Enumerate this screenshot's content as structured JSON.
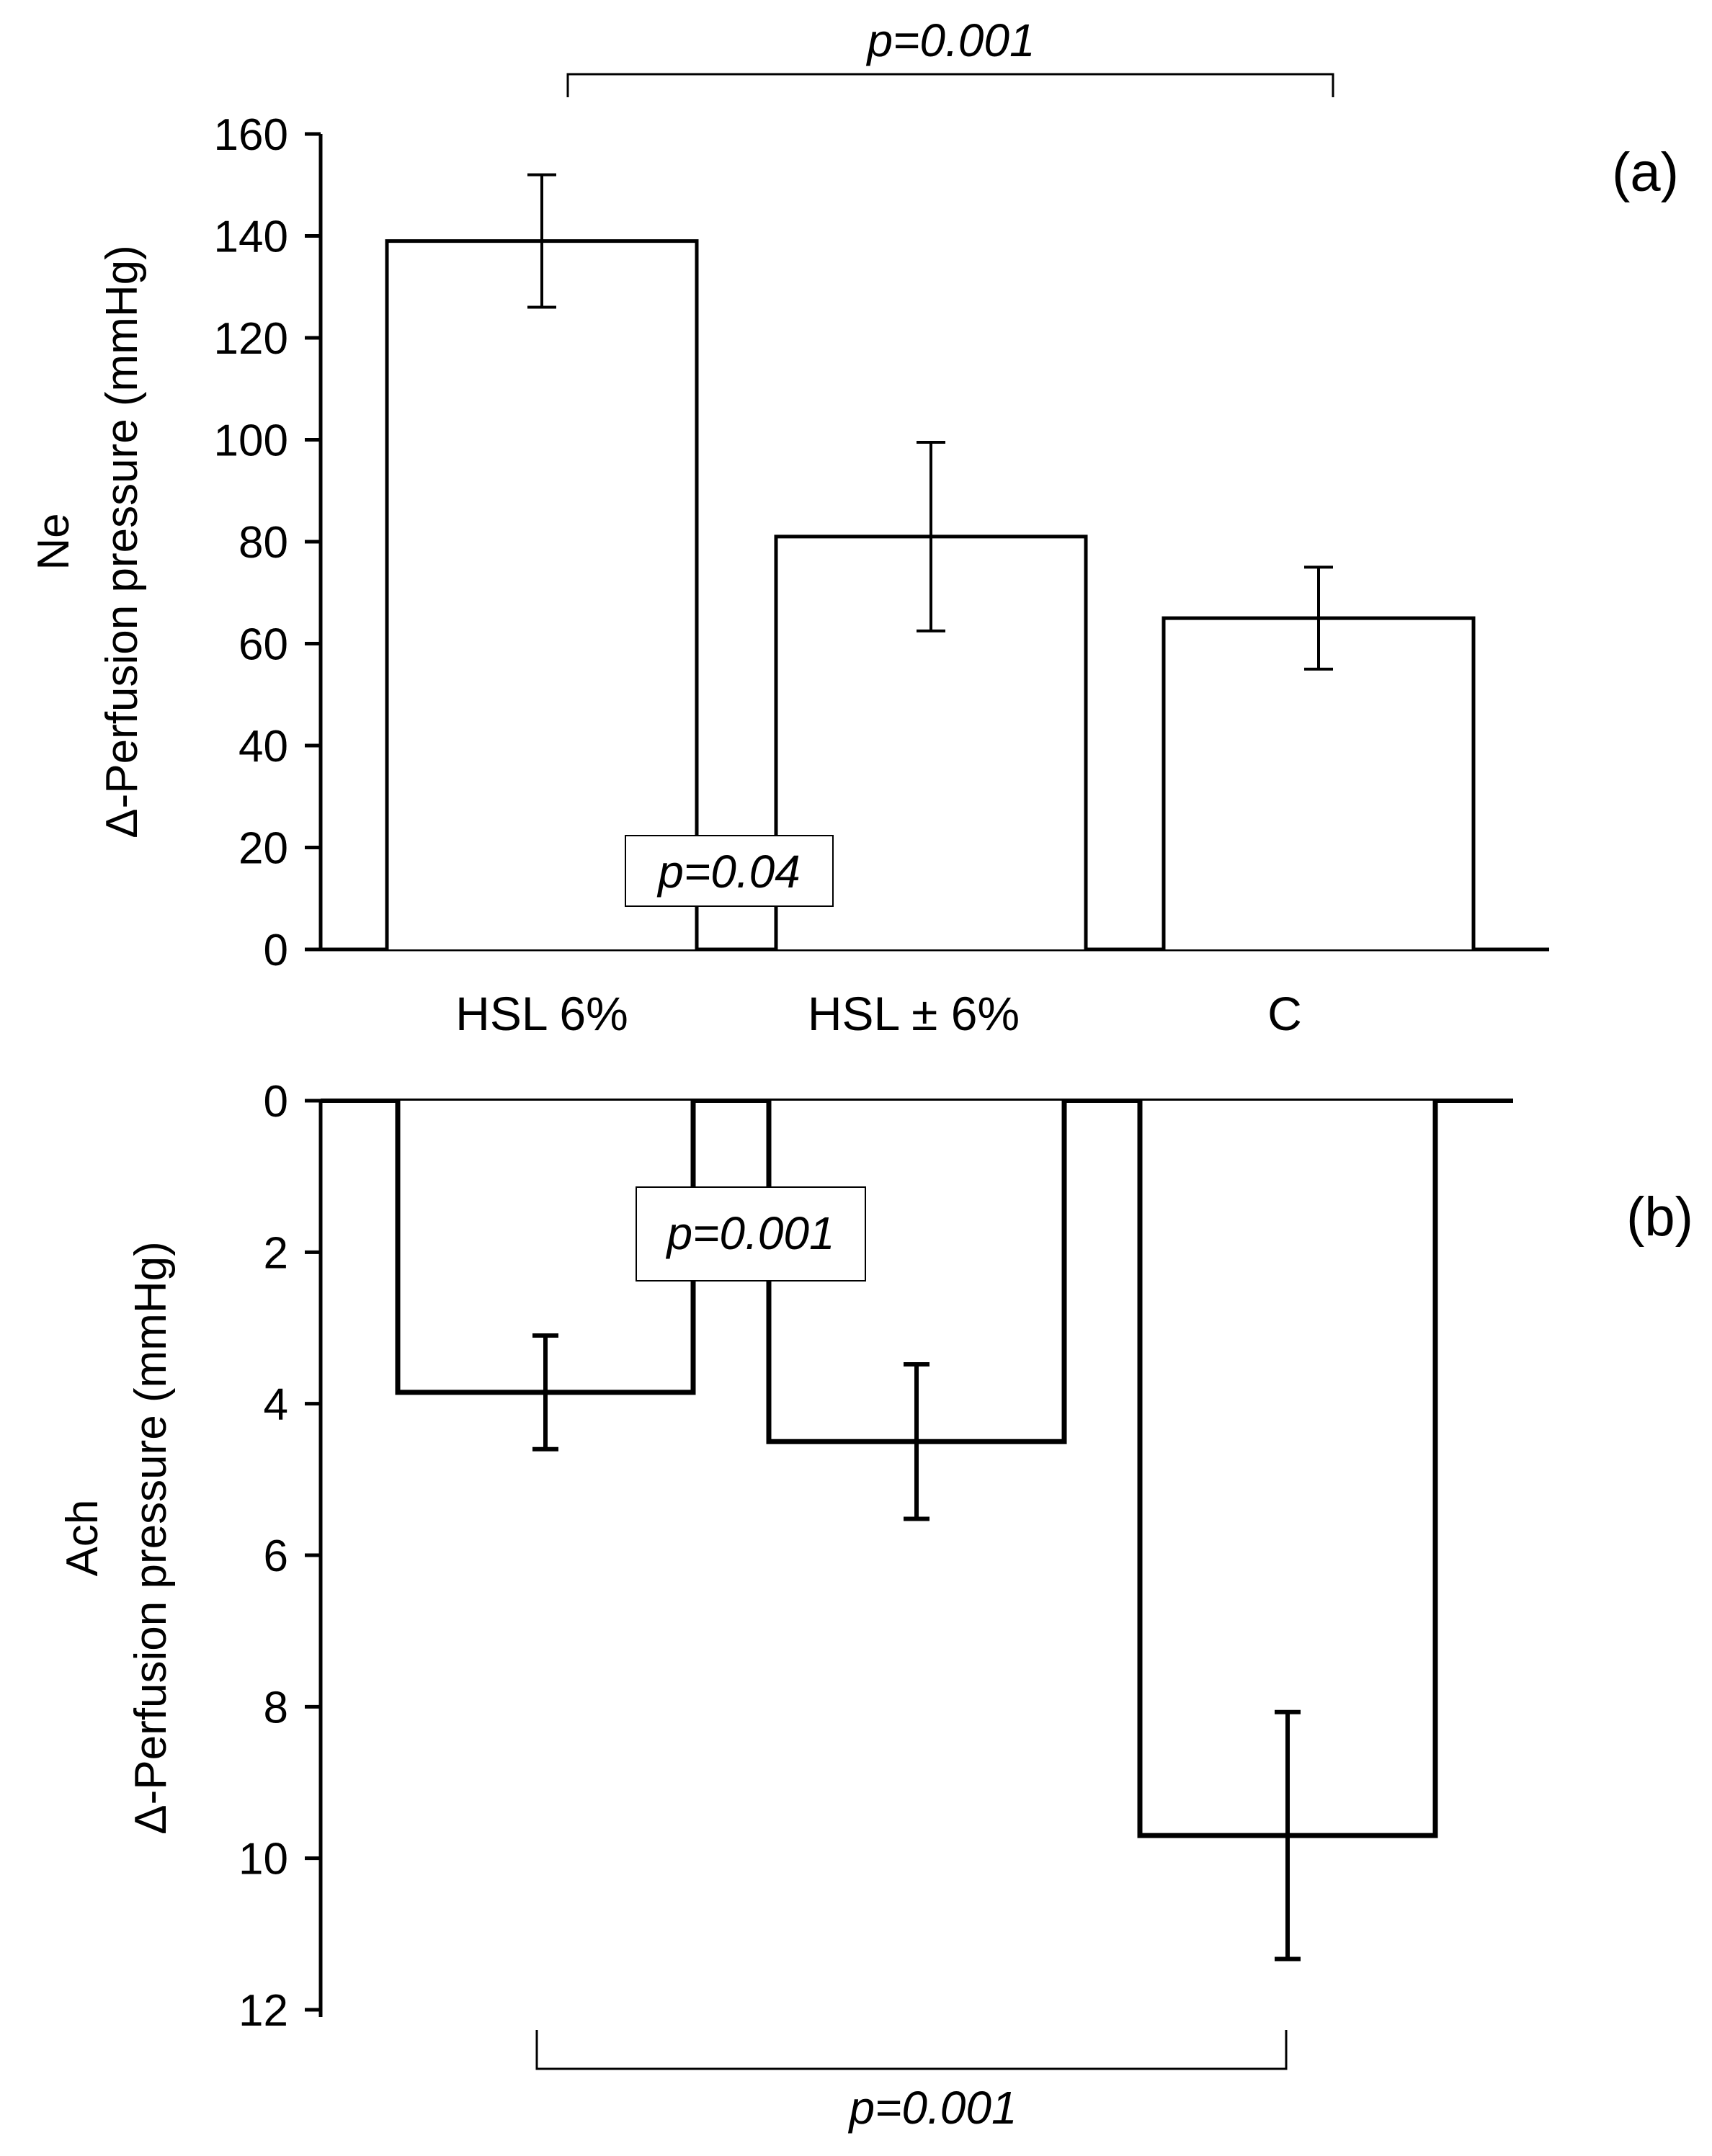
{
  "chart_data": [
    {
      "type": "bar",
      "panel": "(a)",
      "categories": [
        "HSL 6%",
        "HSL ± 6%",
        "C"
      ],
      "values": [
        139,
        81,
        65
      ],
      "errors": [
        13,
        18.5,
        10
      ],
      "ylabel_line1": "Ne",
      "ylabel_line2": "Δ-Perfusion pressure (mmHg)",
      "ylim": [
        0,
        160
      ],
      "yticks": [
        "0",
        "20",
        "40",
        "60",
        "80",
        "100",
        "120",
        "140",
        "160"
      ],
      "comparisons": [
        {
          "from": "HSL 6%",
          "to": "C",
          "label": "p=0.001"
        },
        {
          "from": "HSL 6%",
          "to": "HSL ± 6%",
          "label": "p=0.04"
        }
      ]
    },
    {
      "type": "bar",
      "panel": "(b)",
      "orientation": "inverted",
      "categories": [
        "HSL 6%",
        "HSL ± 6%",
        "C"
      ],
      "values": [
        3.85,
        4.5,
        9.7
      ],
      "errors": [
        0.75,
        1.02,
        1.63
      ],
      "ylabel_line1": "Ach",
      "ylabel_line2": "Δ-Perfusion pressure (mmHg)",
      "ylim": [
        0,
        12
      ],
      "yticks": [
        "0",
        "2",
        "4",
        "6",
        "8",
        "10",
        "12"
      ],
      "comparisons": [
        {
          "from": "HSL 6%",
          "to": "C",
          "label": "p=0.001"
        },
        {
          "from": "HSL 6%",
          "to": "HSL ± 6%",
          "label": "p=0.001"
        }
      ]
    }
  ]
}
